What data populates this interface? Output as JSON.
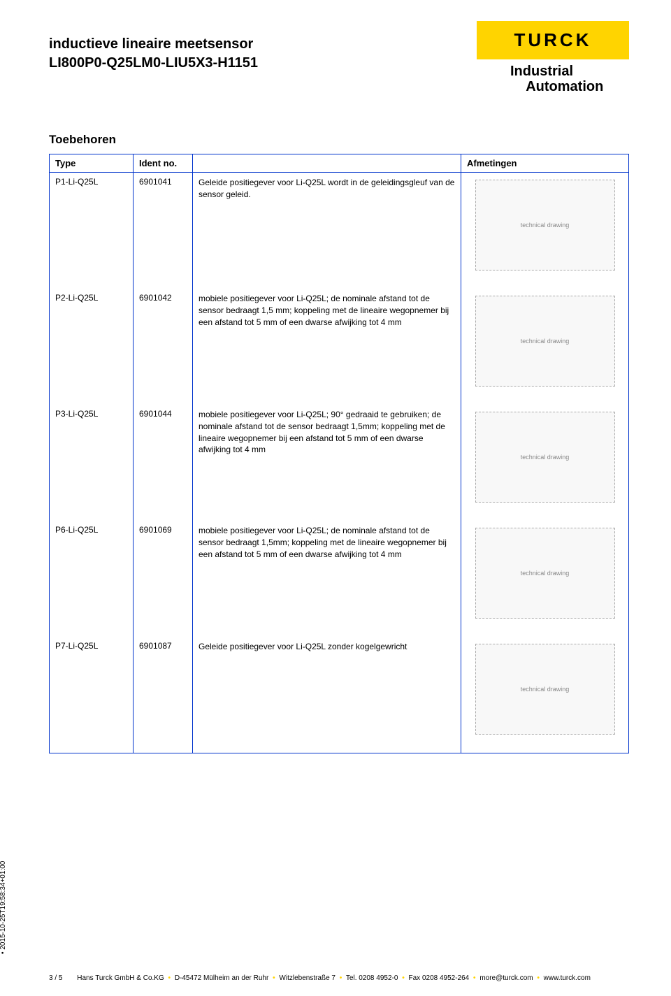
{
  "header": {
    "title_line1": "inductieve lineaire meetsensor",
    "title_line2": "LI800P0-Q25LM0-LIU5X3-H1151",
    "logo_text": "TURCK",
    "logo_sub1": "Industrial",
    "logo_sub2": "Automation",
    "logo_bg": "#ffd400"
  },
  "section_title": "Toebehoren",
  "table": {
    "columns": [
      "Type",
      "Ident no.",
      "",
      "Afmetingen"
    ],
    "border_color": "#0033cc",
    "rows": [
      {
        "type": "P1-Li-Q25L",
        "ident": "6901041",
        "desc": "Geleide positiegever voor Li-Q25L wordt in de geleidingsgleuf van de sensor geleid.",
        "dim_label": "technical drawing"
      },
      {
        "type": "P2-Li-Q25L",
        "ident": "6901042",
        "desc": "mobiele positiegever voor Li-Q25L; de nominale afstand tot de sensor bedraagt 1,5 mm; koppeling met de lineaire wegopnemer bij een afstand tot 5 mm of een dwarse afwijking tot 4 mm",
        "dim_label": "technical drawing"
      },
      {
        "type": "P3-Li-Q25L",
        "ident": "6901044",
        "desc": "mobiele positiegever voor Li-Q25L; 90° gedraaid te gebruiken; de nominale afstand tot de sensor bedraagt 1,5mm; koppeling met de lineaire wegopnemer bij een afstand tot 5 mm of een dwarse afwijking tot 4 mm",
        "dim_label": "technical drawing"
      },
      {
        "type": "P6-Li-Q25L",
        "ident": "6901069",
        "desc": "mobiele positiegever voor Li-Q25L; de nominale afstand tot de sensor bedraagt 1,5mm; koppeling met de lineaire wegopnemer bij een afstand tot 5 mm of een dwarse afwijking tot 4 mm",
        "dim_label": "technical drawing"
      },
      {
        "type": "P7-Li-Q25L",
        "ident": "6901087",
        "desc": "Geleide positiegever voor Li-Q25L zonder kogelgewricht",
        "dim_label": "technical drawing"
      }
    ]
  },
  "timestamp": "• 2015-10-25T19:58:34+01:00",
  "footer": {
    "page": "3 / 5",
    "parts": [
      "Hans Turck GmbH & Co.KG",
      "D-45472 Mülheim an der Ruhr",
      "Witzlebenstraße 7",
      "Tel. 0208 4952-0",
      "Fax 0208 4952-264",
      "more@turck.com",
      "www.turck.com"
    ]
  }
}
